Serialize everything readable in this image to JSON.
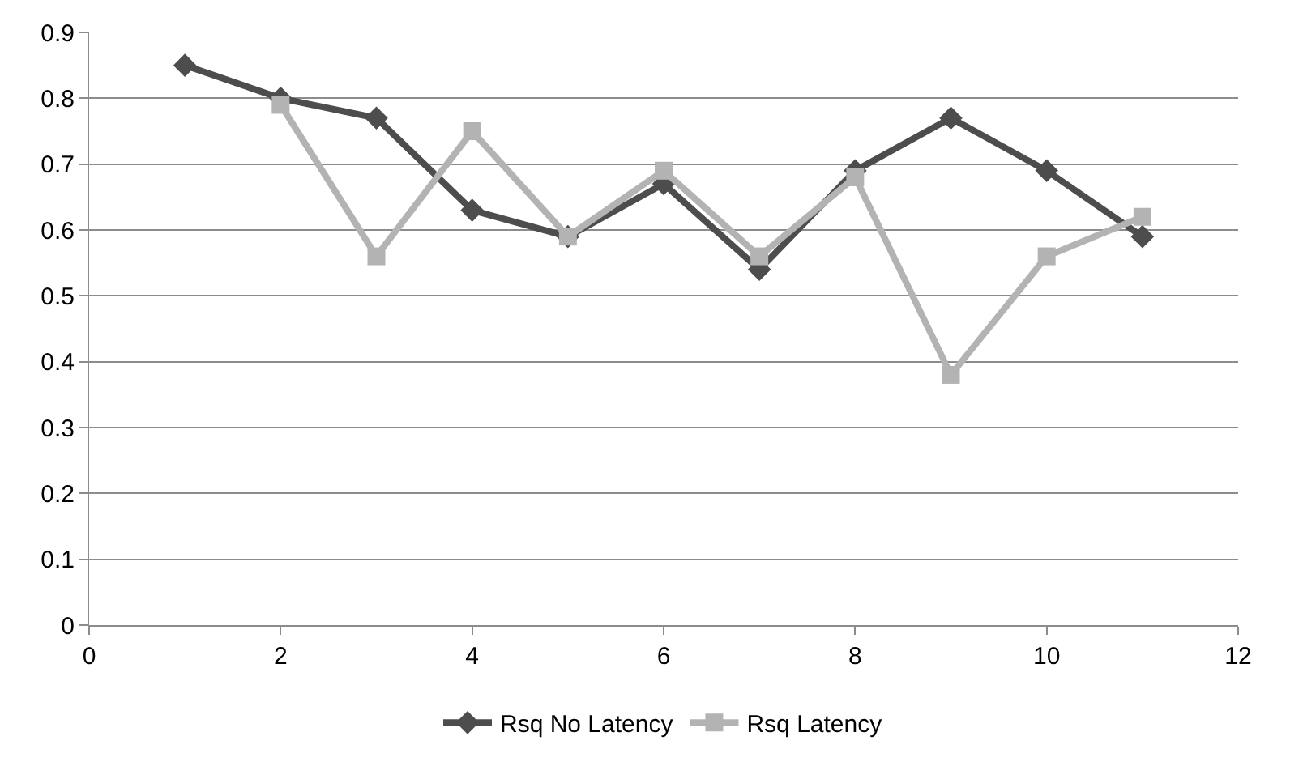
{
  "chart_data": {
    "type": "line",
    "x": [
      1,
      2,
      3,
      4,
      5,
      6,
      7,
      8,
      9,
      10,
      11
    ],
    "series": [
      {
        "name": "Rsq No Latency",
        "color": "#4d4d4d",
        "marker": "diamond",
        "values": [
          0.85,
          0.8,
          0.77,
          0.63,
          0.59,
          0.67,
          0.54,
          0.69,
          0.77,
          0.69,
          0.59
        ]
      },
      {
        "name": "Rsq Latency",
        "color": "#b3b3b3",
        "marker": "square",
        "values": [
          null,
          0.79,
          0.56,
          0.75,
          0.59,
          0.69,
          0.56,
          0.68,
          0.38,
          0.56,
          0.62
        ]
      }
    ],
    "xlim": [
      0,
      12
    ],
    "xticks": [
      0,
      2,
      4,
      6,
      8,
      10,
      12
    ],
    "ylim": [
      0,
      0.9
    ],
    "yticks": [
      0,
      0.1,
      0.2,
      0.3,
      0.4,
      0.5,
      0.6,
      0.7,
      0.8,
      0.9
    ],
    "grid": "y",
    "legend": "bottom",
    "line_style": "solid"
  }
}
